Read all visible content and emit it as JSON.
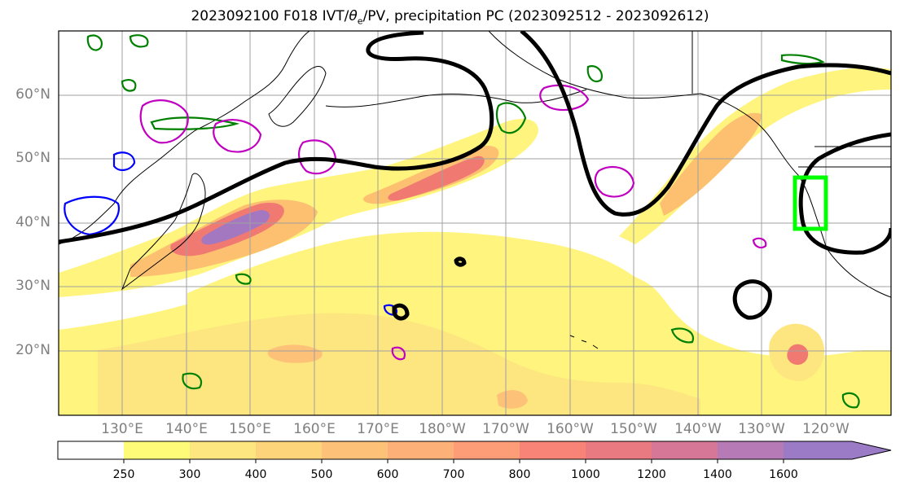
{
  "title_prefix": "2023092100 F018 IVT/",
  "title_theta": "θ",
  "title_sub": "e",
  "title_suffix": "/PV, precipitation PC (2023092512 - 2023092612)",
  "lat_labels": [
    "60°N",
    "50°N",
    "40°N",
    "30°N",
    "20°N"
  ],
  "lon_labels": [
    "130°E",
    "140°E",
    "150°E",
    "160°E",
    "170°E",
    "180°W",
    "170°W",
    "160°W",
    "150°W",
    "140°W",
    "130°W",
    "120°W"
  ],
  "colorbar": {
    "levels": [
      "250",
      "300",
      "400",
      "500",
      "600",
      "700",
      "800",
      "1000",
      "1200",
      "1400",
      "1600"
    ],
    "colors": [
      "#ffffff",
      "#fefb78",
      "#fde680",
      "#fdd47a",
      "#fdc278",
      "#fdb078",
      "#fd9d78",
      "#f88377",
      "#ea7a82",
      "#d67797",
      "#b67bb7",
      "#9b7bc6"
    ]
  },
  "colors": {
    "ivt_low": "#fff47e",
    "ivt_mid": "#fcc070",
    "ivt_high": "#f07a72",
    "ivt_peak": "#a478c0",
    "theta_contour": "#000000",
    "pv_green": "#008000",
    "pv_magenta": "#c000c0",
    "pv_blue": "#0000ff",
    "box": "#00ff00",
    "grid": "#a0a0a0"
  }
}
